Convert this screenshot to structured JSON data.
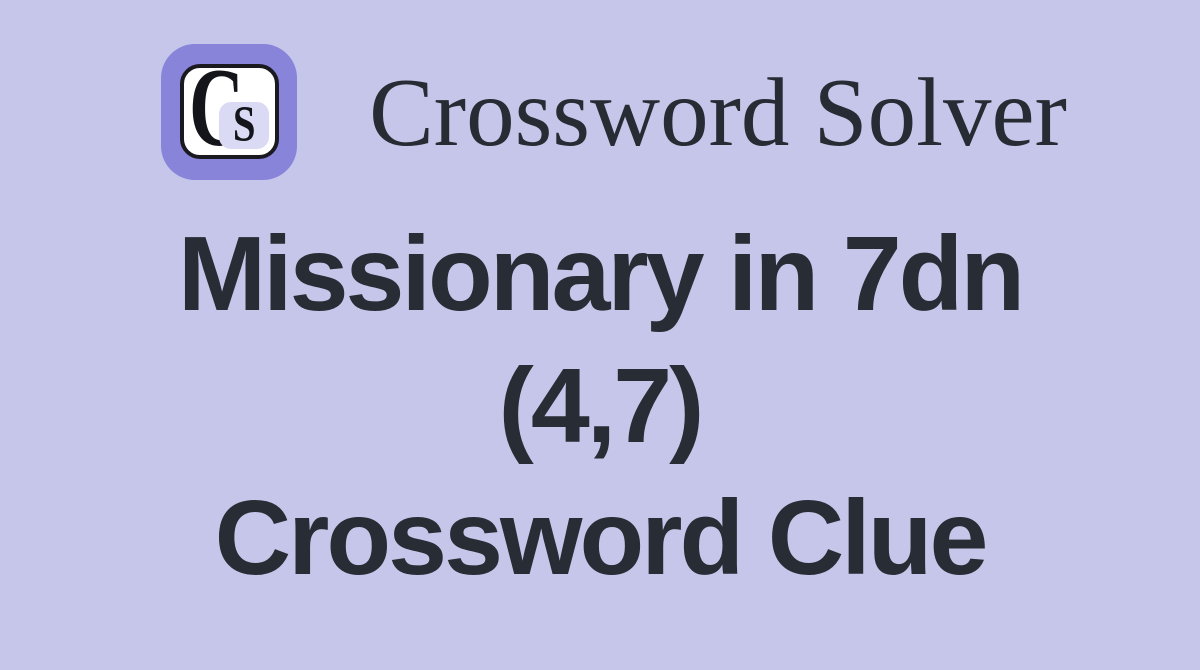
{
  "page": {
    "background_color": "#c5c6e9",
    "ink_color": "#282c34"
  },
  "header": {
    "title": "Crossword Solver",
    "title_color": "#272b33",
    "logo": {
      "letter_c": "C",
      "letter_s": "S",
      "letter_color": "#14141b",
      "tile_color": "#8784d9",
      "inner_tile_color": "#ffffff",
      "badge_color": "#dbdaf4"
    }
  },
  "main": {
    "heading": {
      "line1": "Missionary in 7dn",
      "line2": "(4,7)",
      "line3": "Crossword Clue"
    }
  }
}
